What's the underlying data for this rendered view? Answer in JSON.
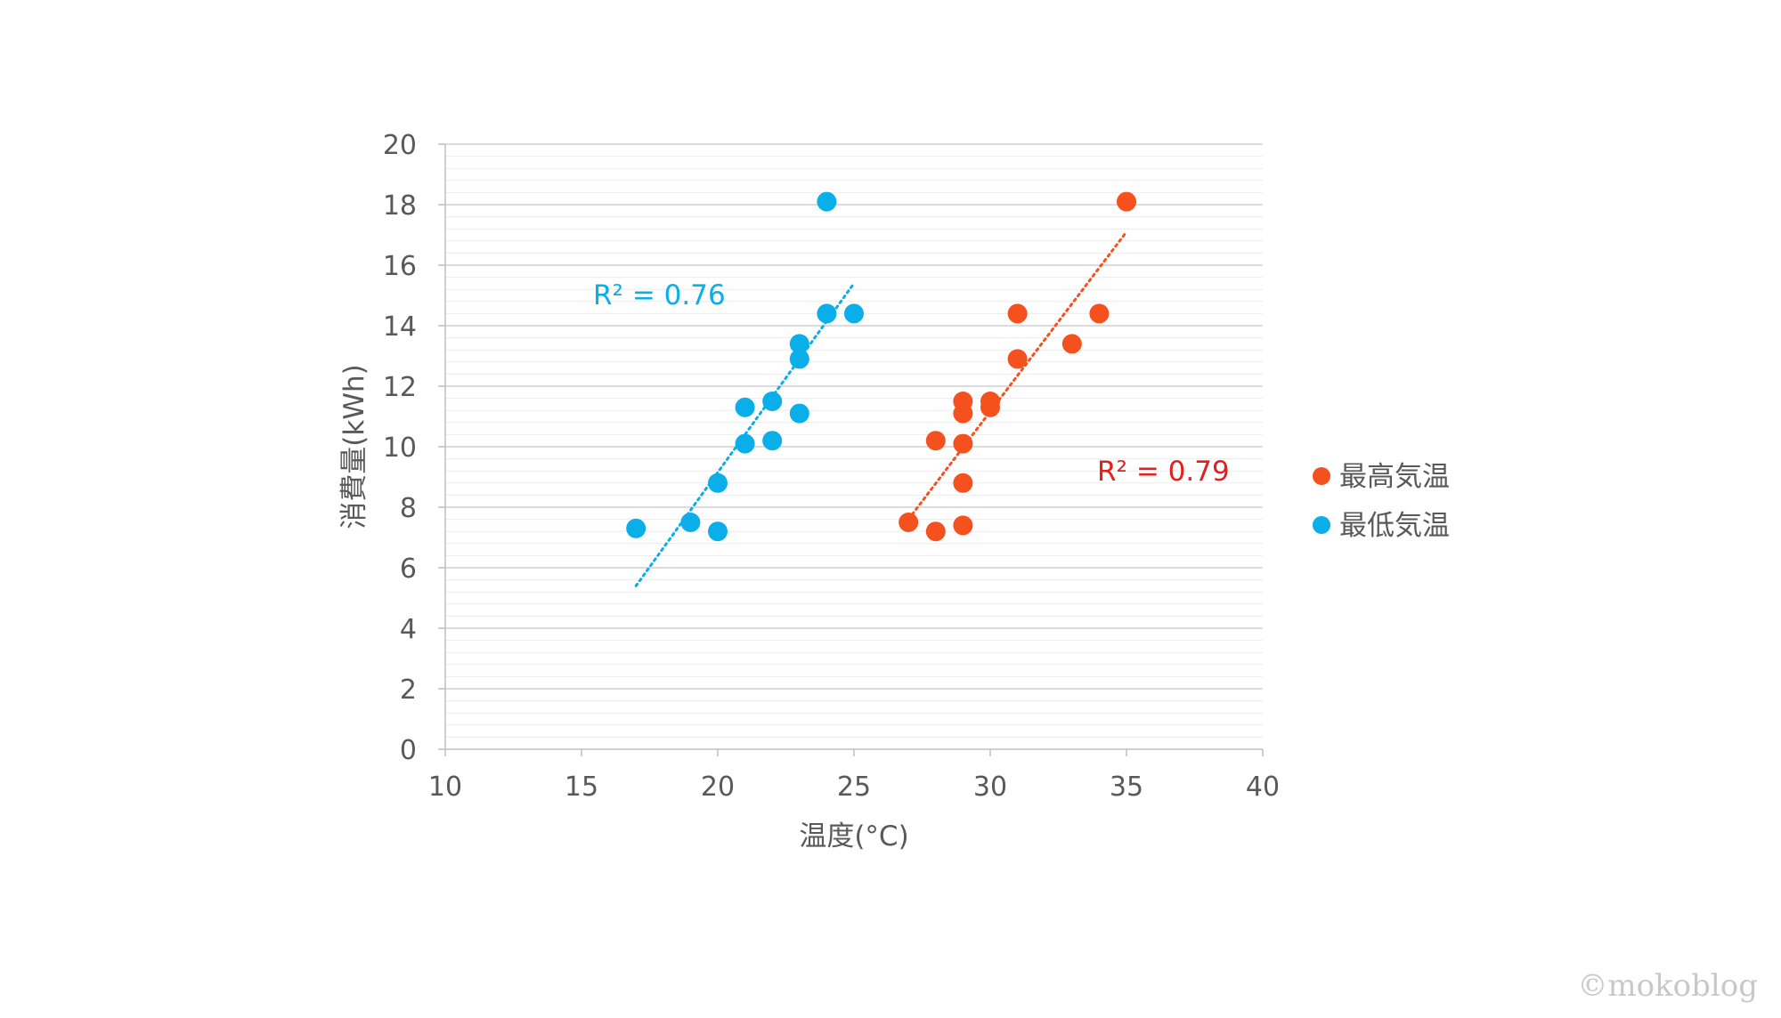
{
  "chart_data": {
    "type": "scatter",
    "xlabel": "温度(°C)",
    "ylabel": "消費量(kWh)",
    "xlim": [
      10,
      40
    ],
    "ylim": [
      0,
      20
    ],
    "x_ticks": [
      "10",
      "15",
      "20",
      "25",
      "30",
      "35",
      "40"
    ],
    "y_ticks": [
      "0",
      "2",
      "4",
      "6",
      "8",
      "10",
      "12",
      "14",
      "16",
      "18",
      "20"
    ],
    "grid": true,
    "legend_position": "right",
    "series": [
      {
        "name": "最高気温",
        "color": "#f4511e",
        "points": [
          [
            27,
            7.5
          ],
          [
            28,
            7.2
          ],
          [
            28,
            10.2
          ],
          [
            29,
            7.4
          ],
          [
            29,
            8.8
          ],
          [
            29,
            10.1
          ],
          [
            29,
            11.1
          ],
          [
            29,
            11.5
          ],
          [
            30,
            11.3
          ],
          [
            30,
            11.5
          ],
          [
            31,
            12.9
          ],
          [
            31,
            14.4
          ],
          [
            33,
            13.4
          ],
          [
            34,
            14.4
          ],
          [
            35,
            18.1
          ]
        ],
        "trendline": {
          "r2_label": "R² = 0.79",
          "x_start": 27,
          "y_start": 7.6,
          "x_end": 35,
          "y_end": 17.1,
          "label_color": "#e02020"
        }
      },
      {
        "name": "最低気温",
        "color": "#0aaee8",
        "points": [
          [
            17,
            7.3
          ],
          [
            19,
            7.5
          ],
          [
            20,
            7.2
          ],
          [
            20,
            8.8
          ],
          [
            21,
            10.1
          ],
          [
            21,
            11.3
          ],
          [
            22,
            10.2
          ],
          [
            22,
            11.5
          ],
          [
            23,
            11.1
          ],
          [
            23,
            12.9
          ],
          [
            23,
            13.4
          ],
          [
            24,
            14.4
          ],
          [
            24,
            18.1
          ],
          [
            25,
            14.4
          ]
        ],
        "trendline": {
          "r2_label": "R² = 0.76",
          "x_start": 17,
          "y_start": 5.4,
          "x_end": 25,
          "y_end": 15.4,
          "label_color": "#0aaee8"
        }
      }
    ]
  },
  "watermark": "©mokoblog"
}
